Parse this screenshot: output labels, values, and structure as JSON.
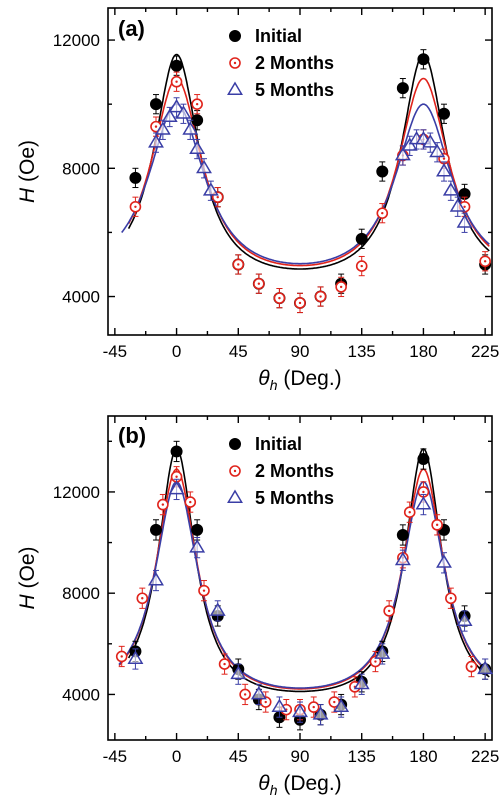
{
  "chart_data": [
    {
      "type": "scatter",
      "panel_label": "(a)",
      "xlabel_symbol": "θ",
      "xlabel_sub": "h",
      "xlabel_rest": " (Deg.)",
      "ylabel_symbol": "H",
      "ylabel_rest": " (Oe)",
      "xlim": [
        -50,
        230
      ],
      "ylim": [
        2800,
        13000
      ],
      "xticks": [
        -45,
        0,
        45,
        90,
        135,
        180,
        225
      ],
      "yticks": [
        4000,
        8000,
        12000
      ],
      "series": [
        {
          "name": "Initial",
          "marker": "filled-circle",
          "color": "#000000",
          "points": [
            [
              -30,
              7700
            ],
            [
              -15,
              10000
            ],
            [
              0,
              11200
            ],
            [
              15,
              9500
            ],
            [
              30,
              7100
            ],
            [
              45,
              5000
            ],
            [
              60,
              4400
            ],
            [
              75,
              3950
            ],
            [
              90,
              3800
            ],
            [
              105,
              4000
            ],
            [
              120,
              4400
            ],
            [
              135,
              5800
            ],
            [
              150,
              7900
            ],
            [
              165,
              10500
            ],
            [
              180,
              11400
            ],
            [
              195,
              9700
            ],
            [
              210,
              7200
            ],
            [
              225,
              5000
            ]
          ],
          "err": 300,
          "fit": {
            "center": 0,
            "period": 180,
            "min": 4000,
            "max": 11550,
            "width": 21,
            "xmin": -35,
            "xmax": 228
          }
        },
        {
          "name": "2 Months",
          "marker": "open-circle",
          "color": "#e0231b",
          "points": [
            [
              -30,
              6800
            ],
            [
              -15,
              9300
            ],
            [
              0,
              10700
            ],
            [
              15,
              10000
            ],
            [
              30,
              7100
            ],
            [
              45,
              5000
            ],
            [
              60,
              4400
            ],
            [
              75,
              3950
            ],
            [
              90,
              3800
            ],
            [
              105,
              4000
            ],
            [
              120,
              4300
            ],
            [
              135,
              4950
            ],
            [
              150,
              6600
            ],
            [
              165,
              8400
            ],
            [
              180,
              8900
            ],
            [
              195,
              8300
            ],
            [
              210,
              6800
            ],
            [
              225,
              5100
            ]
          ],
          "err": 300,
          "fit": {
            "center": 0,
            "period": 180,
            "min": 4000,
            "max": 10800,
            "width": 24,
            "xmin": -35,
            "xmax": 228
          }
        },
        {
          "name": "5 Months",
          "marker": "open-triangle",
          "color": "#3a3ea6",
          "points": [
            [
              -15,
              8800
            ],
            [
              -10,
              9200
            ],
            [
              -5,
              9600
            ],
            [
              0,
              9900
            ],
            [
              5,
              9700
            ],
            [
              10,
              9200
            ],
            [
              15,
              8600
            ],
            [
              20,
              8000
            ],
            [
              25,
              7300
            ],
            [
              165,
              8400
            ],
            [
              170,
              8700
            ],
            [
              175,
              8900
            ],
            [
              180,
              8900
            ],
            [
              185,
              8800
            ],
            [
              190,
              8500
            ],
            [
              195,
              7900
            ],
            [
              200,
              7300
            ],
            [
              205,
              6800
            ],
            [
              210,
              6300
            ]
          ],
          "err": 300,
          "fit": {
            "center": 0,
            "period": 180,
            "min": 4000,
            "max": 10000,
            "width": 27,
            "xmin": -40,
            "xmax": 228
          }
        }
      ]
    },
    {
      "type": "scatter",
      "panel_label": "(b)",
      "xlabel_symbol": "θ",
      "xlabel_sub": "h",
      "xlabel_rest": " (Deg.)",
      "ylabel_symbol": "H",
      "ylabel_rest": " (Oe)",
      "xlim": [
        -50,
        230
      ],
      "ylim": [
        2200,
        15000
      ],
      "xticks": [
        -45,
        0,
        45,
        90,
        135,
        180,
        225
      ],
      "yticks": [
        4000,
        8000,
        12000
      ],
      "series": [
        {
          "name": "Initial",
          "marker": "filled-circle",
          "color": "#000000",
          "points": [
            [
              -30,
              5700
            ],
            [
              -15,
              10500
            ],
            [
              0,
              13600
            ],
            [
              15,
              10500
            ],
            [
              30,
              7100
            ],
            [
              45,
              5000
            ],
            [
              60,
              3800
            ],
            [
              75,
              3100
            ],
            [
              90,
              3000
            ],
            [
              105,
              3200
            ],
            [
              120,
              3600
            ],
            [
              135,
              4500
            ],
            [
              150,
              5700
            ],
            [
              165,
              10300
            ],
            [
              180,
              13300
            ],
            [
              195,
              10500
            ],
            [
              210,
              7100
            ],
            [
              225,
              5000
            ]
          ],
          "err": 400,
          "fit": {
            "center": 0,
            "period": 180,
            "min": 3300,
            "max": 13700,
            "width": 17,
            "xmin": -35,
            "xmax": 228
          }
        },
        {
          "name": "2 Months",
          "marker": "open-circle",
          "color": "#e0231b",
          "points": [
            [
              -40,
              5500
            ],
            [
              -25,
              7800
            ],
            [
              -10,
              11500
            ],
            [
              0,
              12600
            ],
            [
              10,
              11600
            ],
            [
              20,
              8100
            ],
            [
              35,
              5200
            ],
            [
              50,
              4000
            ],
            [
              65,
              3700
            ],
            [
              80,
              3400
            ],
            [
              90,
              3400
            ],
            [
              100,
              3500
            ],
            [
              115,
              3700
            ],
            [
              130,
              4300
            ],
            [
              145,
              5300
            ],
            [
              155,
              7300
            ],
            [
              165,
              9400
            ],
            [
              170,
              11200
            ],
            [
              180,
              12000
            ],
            [
              190,
              10700
            ],
            [
              200,
              7800
            ],
            [
              215,
              5100
            ]
          ],
          "err": 400,
          "fit": {
            "center": 0,
            "period": 180,
            "min": 3300,
            "max": 12900,
            "width": 19,
            "xmin": -42,
            "xmax": 228
          }
        },
        {
          "name": "5 Months",
          "marker": "open-triangle",
          "color": "#3a3ea6",
          "points": [
            [
              -30,
              5400
            ],
            [
              -15,
              8500
            ],
            [
              0,
              12100
            ],
            [
              15,
              9800
            ],
            [
              30,
              7300
            ],
            [
              45,
              4800
            ],
            [
              60,
              4000
            ],
            [
              75,
              3500
            ],
            [
              90,
              3300
            ],
            [
              105,
              3200
            ],
            [
              120,
              3500
            ],
            [
              135,
              4400
            ],
            [
              150,
              5600
            ],
            [
              165,
              9300
            ],
            [
              180,
              11500
            ],
            [
              195,
              9200
            ],
            [
              210,
              6900
            ],
            [
              225,
              5000
            ]
          ],
          "err": 400,
          "fit": {
            "center": 0,
            "period": 180,
            "min": 3300,
            "max": 12400,
            "width": 20,
            "xmin": -42,
            "xmax": 228
          }
        }
      ]
    }
  ]
}
